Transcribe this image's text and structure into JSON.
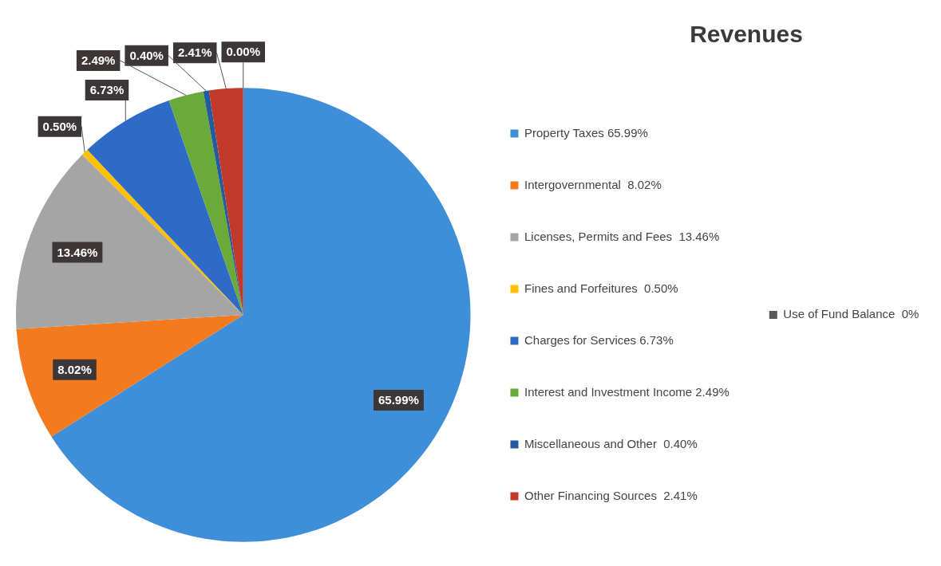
{
  "chart_data": {
    "type": "pie",
    "title": "Revenues",
    "categories": [
      "Property Taxes 65.99%",
      "Intergovernmental  8.02%",
      "Licenses, Permits and Fees  13.46%",
      "Fines and Forfeitures  0.50%",
      "Charges for Services 6.73%",
      "Interest and Investment Income 2.49%",
      "Miscellaneous and Other  0.40%",
      "Other Financing Sources  2.41%",
      "Use of Fund Balance  0%"
    ],
    "values": [
      65.99,
      8.02,
      13.46,
      0.5,
      6.73,
      2.49,
      0.4,
      2.41,
      0
    ],
    "value_labels": [
      "65.99%",
      "8.02%",
      "13.46%",
      "0.50%",
      "6.73%",
      "2.49%",
      "0.40%",
      "2.41%",
      "0.00%"
    ],
    "colors": [
      "#3f8fd8",
      "#f47a1f",
      "#a5a5a5",
      "#ffc000",
      "#2e6bc6",
      "#6aaa3a",
      "#245a9e",
      "#c0392b",
      "#595959"
    ],
    "legend": "right"
  }
}
